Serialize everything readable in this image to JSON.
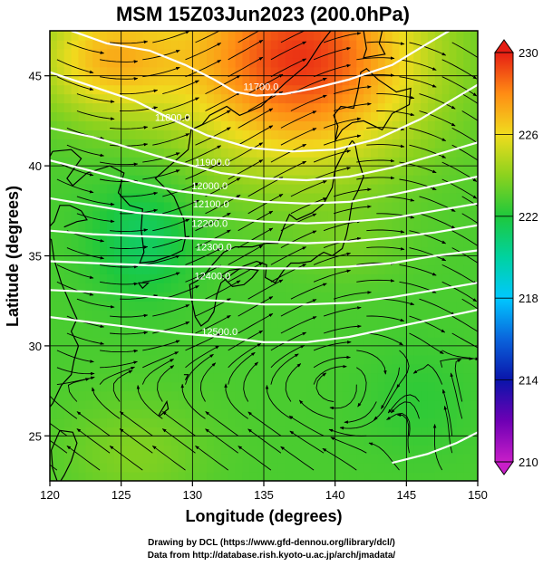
{
  "chart_data": {
    "type": "heatmap",
    "title": "MSM 15Z03Jun2023 (200.0hPa)",
    "xlabel": "Longitude (degrees)",
    "ylabel": "Latitude  (degrees)",
    "xlim": [
      120,
      150
    ],
    "ylim": [
      22.5,
      47.5
    ],
    "xticks": [
      120,
      125,
      130,
      135,
      140,
      145,
      150
    ],
    "yticks": [
      25,
      30,
      35,
      40,
      45
    ],
    "grid": true,
    "colorbar": {
      "min": 210,
      "max": 230,
      "ticks": [
        210,
        214,
        218,
        222,
        226,
        230
      ]
    },
    "contours": [
      {
        "label": "11700.0",
        "lon": 134.8,
        "lat": 44.2
      },
      {
        "label": "11800.0",
        "lon": 128.6,
        "lat": 42.5
      },
      {
        "label": "11900.0",
        "lon": 131.4,
        "lat": 40.0
      },
      {
        "label": "12000.0",
        "lon": 131.2,
        "lat": 38.7
      },
      {
        "label": "12100.0",
        "lon": 131.3,
        "lat": 37.7
      },
      {
        "label": "12200.0",
        "lon": 131.2,
        "lat": 36.6
      },
      {
        "label": "12300.0",
        "lon": 131.5,
        "lat": 35.3
      },
      {
        "label": "12400.0",
        "lon": 131.4,
        "lat": 33.7
      },
      {
        "label": "12500.0",
        "lon": 131.9,
        "lat": 30.6
      }
    ]
  },
  "credits": {
    "line1": "Drawing by DCL (https://www.gfd-dennou.org/library/dcl/)",
    "line2": "Data from http://database.rish.kyoto-u.ac.jp/arch/jmadata/"
  }
}
